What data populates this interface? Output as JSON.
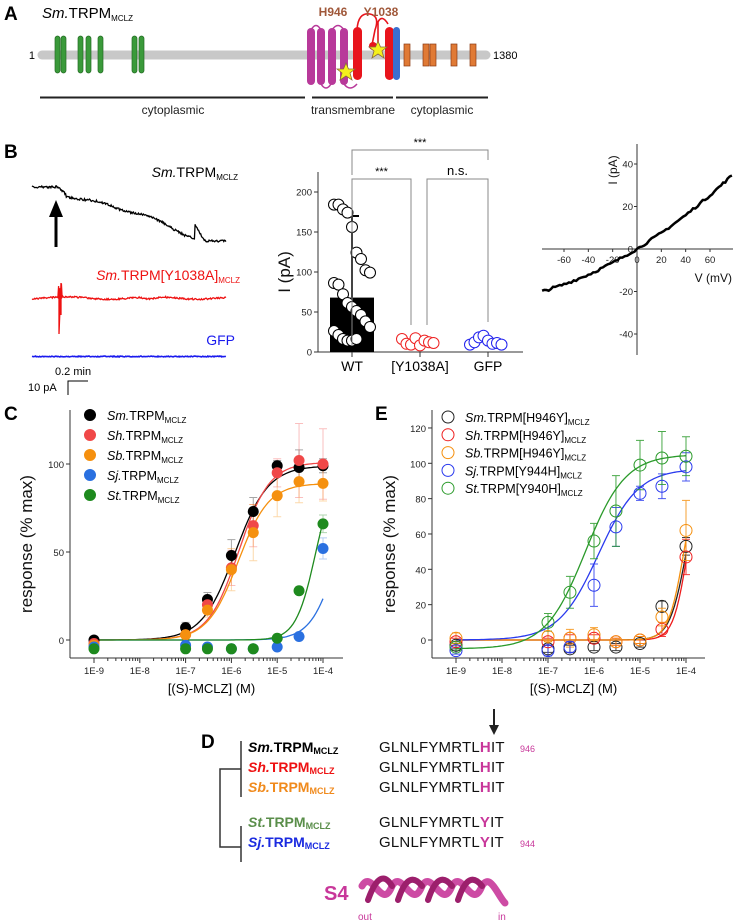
{
  "panel_labels": {
    "a": "A",
    "b": "B",
    "c": "C",
    "d": "D",
    "e": "E"
  },
  "panel_a": {
    "title_species": "Sm.",
    "title_base": "TRPM",
    "title_sub": "MCLZ",
    "start": "1",
    "end": "1380",
    "site1": "H946",
    "site2": "Y1038",
    "regions": [
      "cytoplasmic",
      "transmembrane",
      "cytoplasmic"
    ],
    "colors": {
      "ankyrin": "#3a9a3a",
      "tm": "#b8399a",
      "pore": "#e8141c",
      "trp": "#3a6fd0",
      "coil": "#e07a35",
      "site_label": "#a0583a",
      "star": "#f4f01c"
    }
  },
  "panel_b": {
    "traces": [
      {
        "species": "Sm.",
        "base": "TRPM",
        "sub": "MCLZ",
        "color": "#000000"
      },
      {
        "species": "Sm.",
        "base": "TRPM[Y1038A]",
        "sub": "MCLZ",
        "color": "#ee1111"
      },
      {
        "species": "",
        "base": "GFP",
        "sub": "",
        "color": "#1a1aee"
      }
    ],
    "scale_time": "0.2 min",
    "scale_current": "10 pA"
  },
  "chart_data": [
    {
      "id": "B-bar",
      "type": "bar",
      "ylabel": "I (pA)",
      "ylim": [
        0,
        200
      ],
      "yticks": [
        "0",
        "50",
        "100",
        "150",
        "200"
      ],
      "categories": [
        "WT",
        "[Y1038A]",
        "GFP"
      ],
      "bar_mean": [
        68,
        0,
        0
      ],
      "bar_error_top": [
        170,
        null,
        null
      ],
      "points": [
        [
          178,
          178,
          172,
          168,
          150,
          118,
          110,
          96,
          93,
          80,
          78,
          66,
          55,
          50,
          45,
          40,
          32,
          25,
          20,
          15,
          10,
          8,
          8,
          10
        ],
        [
          10,
          4,
          3,
          11,
          2,
          8,
          6,
          5
        ],
        [
          3,
          6,
          12,
          14,
          8,
          4,
          5,
          3
        ]
      ],
      "point_colors": [
        "#000000",
        "#ee2222",
        "#2222ee"
      ],
      "significance": [
        {
          "pair": [
            "WT",
            "GFP"
          ],
          "label": "***"
        },
        {
          "pair": [
            "WT",
            "[Y1038A]"
          ],
          "label": "***"
        },
        {
          "pair": [
            "[Y1038A]",
            "GFP"
          ],
          "label": "n.s."
        }
      ]
    },
    {
      "id": "B-IV",
      "type": "line",
      "xlabel": "V (mV)",
      "ylabel": "I (pA)",
      "xlim": [
        -80,
        80
      ],
      "ylim": [
        -50,
        50
      ],
      "xticks": [
        "-60",
        "-40",
        "-20",
        "0",
        "20",
        "40",
        "60"
      ],
      "yticks": [
        "-40",
        "-20",
        "0",
        "20",
        "40"
      ],
      "x": [
        -78,
        -60,
        -40,
        -20,
        0,
        20,
        40,
        60,
        78
      ],
      "y": [
        -20,
        -16.7,
        -12.1,
        -6.5,
        0,
        7.5,
        15.9,
        25.3,
        34.6
      ]
    },
    {
      "id": "C",
      "type": "scatter",
      "xlabel": "[(S)-MCLZ] (M)",
      "ylabel": "response (% max)",
      "xscale": "log",
      "xlim": [
        1e-09,
        0.0001
      ],
      "ylim": [
        -10,
        130
      ],
      "xticks": [
        "1E-9",
        "1E-8",
        "1E-7",
        "1E-6",
        "1E-5",
        "1E-4"
      ],
      "yticks": [
        "0",
        "50",
        "100"
      ],
      "x": [
        1e-09,
        1e-07,
        3e-07,
        1e-06,
        3e-06,
        1e-05,
        3e-05,
        0.0001
      ],
      "legend_position": "top-left",
      "marker": "filled",
      "series": [
        {
          "species": "Sm.",
          "base": "TRPM",
          "sub": "MCLZ",
          "color": "#000000",
          "values": [
            0,
            7,
            23,
            48,
            73,
            99,
            98,
            99
          ],
          "err": [
            2,
            3,
            4,
            9,
            8,
            3,
            10,
            4
          ],
          "fit": {
            "bottom": 0,
            "top": 99,
            "ec50": 1.2e-06,
            "hill": 1.2
          }
        },
        {
          "species": "Sh.",
          "base": "TRPM",
          "sub": "MCLZ",
          "color": "#f04848",
          "values": [
            -2,
            3,
            20,
            41,
            65,
            95,
            102,
            100
          ],
          "err": [
            2,
            3,
            4,
            10,
            12,
            8,
            21,
            20
          ],
          "fit": {
            "bottom": 0,
            "top": 101,
            "ec50": 1.45e-06,
            "hill": 1.3
          }
        },
        {
          "species": "Sb.",
          "base": "TRPM",
          "sub": "MCLZ",
          "color": "#f5900f",
          "values": [
            -3,
            3,
            17,
            40,
            61,
            82,
            90,
            89
          ],
          "err": [
            2,
            3,
            4,
            12,
            16,
            12,
            12,
            10
          ],
          "fit": {
            "bottom": 0,
            "top": 89,
            "ec50": 1.4e-06,
            "hill": 1.3
          }
        },
        {
          "species": "Sj.",
          "base": "TRPM",
          "sub": "MCLZ",
          "color": "#2a70e0",
          "values": [
            -4,
            -3,
            -4,
            -5,
            -5,
            -4,
            2,
            52
          ],
          "err": [
            1,
            1,
            1,
            1,
            1,
            1,
            2,
            6
          ],
          "fit": {
            "bottom": 0,
            "top": 100,
            "ec50": 0.00022,
            "hill": 1.5
          }
        },
        {
          "species": "St.",
          "base": "TRPM",
          "sub": "MCLZ",
          "color": "#1e8a1e",
          "values": [
            -5,
            -5,
            -5,
            -5,
            -5,
            1,
            28,
            66
          ],
          "err": [
            1,
            1,
            1,
            1,
            1,
            1,
            2,
            5
          ],
          "fit": {
            "bottom": 0,
            "top": 100,
            "ec50": 7e-05,
            "hill": 2.0
          }
        }
      ]
    },
    {
      "id": "E",
      "type": "scatter",
      "xlabel": "[(S)-MCLZ] (M)",
      "ylabel": "response (% max)",
      "xscale": "log",
      "xlim": [
        1e-09,
        0.0001
      ],
      "ylim": [
        -10,
        125
      ],
      "xticks": [
        "1E-9",
        "1E-8",
        "1E-7",
        "1E-6",
        "1E-5",
        "1E-4"
      ],
      "yticks": [
        "0",
        "20",
        "40",
        "60",
        "80",
        "100",
        "120"
      ],
      "x": [
        1e-09,
        1e-07,
        3e-07,
        1e-06,
        3e-06,
        1e-05,
        3e-05,
        0.0001
      ],
      "legend_position": "top-left",
      "marker": "open",
      "series": [
        {
          "species": "Sm.",
          "base": "TRPM[H946Y]",
          "sub": "MCLZ",
          "color": "#222222",
          "values": [
            -3,
            -5,
            -5,
            -4,
            -4,
            -2,
            19,
            53
          ],
          "err": [
            2,
            2,
            2,
            2,
            2,
            2,
            3,
            5
          ],
          "fit": {
            "bottom": 0,
            "top": 100,
            "ec50": 0.000102,
            "hill": 2.4
          }
        },
        {
          "species": "Sh.",
          "base": "TRPM[H946Y]",
          "sub": "MCLZ",
          "color": "#ee1c1c",
          "values": [
            -1,
            -1,
            1,
            1,
            -1,
            0,
            6,
            47
          ],
          "err": [
            2,
            2,
            2,
            2,
            2,
            2,
            4,
            10
          ],
          "fit": {
            "bottom": 0,
            "top": 100,
            "ec50": 0.000108,
            "hill": 2.8
          }
        },
        {
          "species": "Sb.",
          "base": "TRPM[H946Y]",
          "sub": "MCLZ",
          "color": "#f5900f",
          "values": [
            1,
            2,
            1,
            3,
            -1,
            0,
            13,
            62
          ],
          "err": [
            3,
            3,
            5,
            4,
            2,
            2,
            5,
            17
          ],
          "fit": {
            "bottom": 0,
            "top": 100,
            "ec50": 9e-05,
            "hill": 2.6
          }
        },
        {
          "species": "Sj.",
          "base": "TRPM[Y944H]",
          "sub": "MCLZ",
          "color": "#2a3aee",
          "values": [
            -6,
            -6,
            -4,
            31,
            64,
            83,
            87,
            98
          ],
          "err": [
            2,
            3,
            3,
            12,
            11,
            4,
            7,
            8
          ],
          "fit": {
            "bottom": 0,
            "top": 97,
            "ec50": 1.25e-06,
            "hill": 1.0
          }
        },
        {
          "species": "St.",
          "base": "TRPM[Y940H]",
          "sub": "MCLZ",
          "color": "#2a9a2a",
          "values": [
            -4,
            10,
            27,
            56,
            73,
            99,
            103,
            104
          ],
          "err": [
            2,
            5,
            9,
            10,
            20,
            14,
            15,
            11
          ],
          "fit": {
            "bottom": -5,
            "top": 105,
            "ec50": 6.5e-07,
            "hill": 1.0
          }
        }
      ]
    }
  ],
  "panel_d": {
    "rows": [
      {
        "species": "Sm.",
        "base": "TRPM",
        "sub": "MCLZ",
        "color": "#000000",
        "seq_pre": "GLNLFYMRTL",
        "seq_res": "H",
        "seq_post": "IT",
        "number": "946"
      },
      {
        "species": "Sh.",
        "base": "TRPM",
        "sub": "MCLZ",
        "color": "#ee1111",
        "seq_pre": "GLNLFYMRTL",
        "seq_res": "H",
        "seq_post": "IT",
        "number": ""
      },
      {
        "species": "Sb.",
        "base": "TRPM",
        "sub": "MCLZ",
        "color": "#f08a1c",
        "seq_pre": "GLNLFYMRTL",
        "seq_res": "H",
        "seq_post": "IT",
        "number": ""
      },
      {
        "species": "St.",
        "base": "TRPM",
        "sub": "MCLZ",
        "color": "#5a8e4a",
        "seq_pre": "GLNLFYMRTL",
        "seq_res": "Y",
        "seq_post": "IT",
        "number": ""
      },
      {
        "species": "Sj.",
        "base": "TRPM",
        "sub": "MCLZ",
        "color": "#1a2ae0",
        "seq_pre": "GLNLFYMRTL",
        "seq_res": "Y",
        "seq_post": "IT",
        "number": "944"
      }
    ],
    "highlight_color": "#c8379a",
    "helix_label": "S4",
    "helix_out": "out",
    "helix_in": "in"
  }
}
